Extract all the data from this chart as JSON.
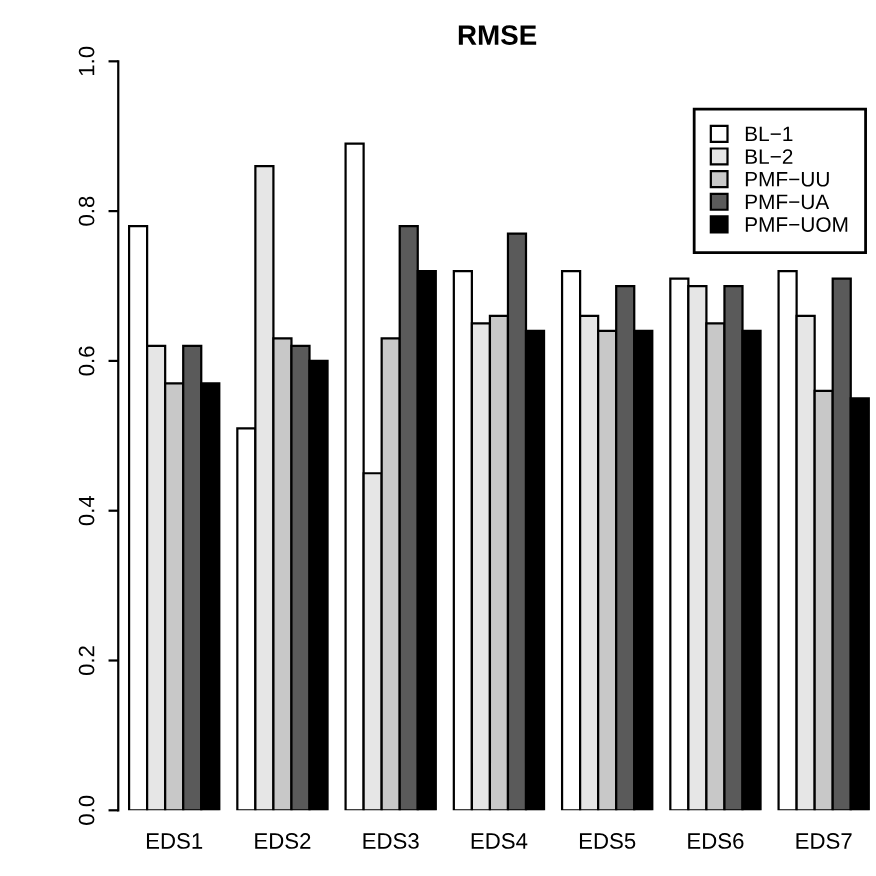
{
  "chart_data": {
    "type": "bar",
    "title": "RMSE",
    "categories": [
      "EDS1",
      "EDS2",
      "EDS3",
      "EDS4",
      "EDS5",
      "EDS6",
      "EDS7"
    ],
    "series": [
      {
        "name": "BL−1",
        "color": "#ffffff",
        "values": [
          0.78,
          0.51,
          0.89,
          0.72,
          0.72,
          0.71,
          0.72
        ]
      },
      {
        "name": "BL−2",
        "color": "#e6e6e6",
        "values": [
          0.62,
          0.86,
          0.45,
          0.65,
          0.66,
          0.7,
          0.66
        ]
      },
      {
        "name": "PMF−UU",
        "color": "#c8c8c8",
        "values": [
          0.57,
          0.63,
          0.63,
          0.66,
          0.64,
          0.65,
          0.56
        ]
      },
      {
        "name": "PMF−UA",
        "color": "#5a5a5a",
        "values": [
          0.62,
          0.62,
          0.78,
          0.77,
          0.7,
          0.7,
          0.71
        ]
      },
      {
        "name": "PMF−UOM",
        "color": "#000000",
        "values": [
          0.57,
          0.6,
          0.72,
          0.64,
          0.64,
          0.64,
          0.55
        ]
      }
    ],
    "ylim": [
      0,
      1.0
    ],
    "yticks": [
      {
        "value": 0,
        "label": "0.0"
      },
      0.2,
      0.4,
      0.6,
      0.8,
      {
        "value": 1,
        "label": "1.0"
      }
    ],
    "grid": false,
    "legend": "top right"
  }
}
